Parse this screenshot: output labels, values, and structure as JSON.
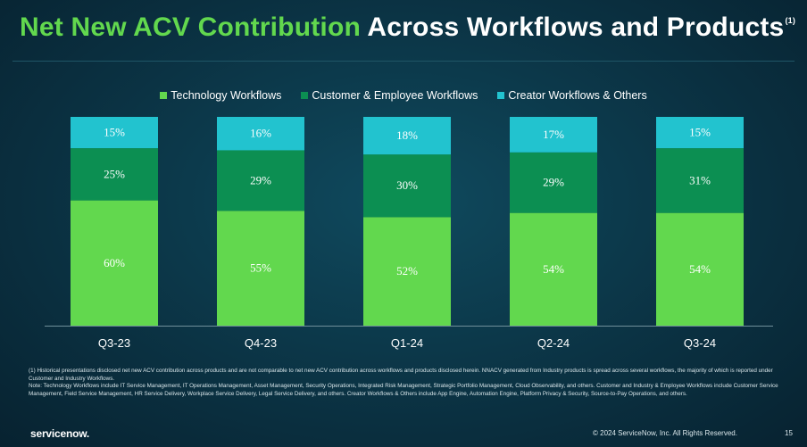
{
  "slide": {
    "title_green": "Net New ACV Contribution",
    "title_white": "Across Workflows and Products",
    "title_sup": "(1)",
    "footnote_1": "(1) Historical presentations disclosed net new ACV contribution across products and are not comparable to net new ACV contribution across workflows and products disclosed herein. NNACV generated from Industry products is spread across several workflows, the majority of which is reported under Customer and Industry Workflows.",
    "footnote_2": "Note: Technology Workflows include IT Service Management, IT Operations Management, Asset Management, Security Operations, Integrated Risk Management, Strategic Portfolio Management, Cloud Observability, and others. Customer and Industry & Employee Workflows include Customer Service Management, Field Service Management, HR Service Delivery, Workplace Service Delivery, Legal Service Delivery, and others. Creator Workflows & Others include App Engine, Automation Engine, Platform Privacy & Security, Source-to-Pay Operations, and others.",
    "logo": "servicenow.",
    "copyright": "© 2024 ServiceNow, Inc. All Rights Reserved.",
    "page_number": "15"
  },
  "colors": {
    "tech": "#62d84e",
    "customer": "#0c8f52",
    "creator": "#22c3cf",
    "title_green": "#62d84e"
  },
  "chart_data": {
    "type": "bar",
    "stacked": true,
    "percent_stacked": true,
    "categories": [
      "Q3-23",
      "Q4-23",
      "Q1-24",
      "Q2-24",
      "Q3-24"
    ],
    "series": [
      {
        "name": "Technology Workflows",
        "values": [
          60,
          55,
          52,
          54,
          54
        ],
        "labels": [
          "60%",
          "55%",
          "52%",
          "54%",
          "54%"
        ]
      },
      {
        "name": "Customer & Employee Workflows",
        "values": [
          25,
          29,
          30,
          29,
          31
        ],
        "labels": [
          "25%",
          "29%",
          "30%",
          "29%",
          "31%"
        ]
      },
      {
        "name": "Creator Workflows & Others",
        "values": [
          15,
          16,
          18,
          17,
          15
        ],
        "labels": [
          "15%",
          "16%",
          "18%",
          "17%",
          "15%"
        ]
      }
    ],
    "ylim": [
      0,
      100
    ],
    "legend_position": "top",
    "grid": false
  }
}
